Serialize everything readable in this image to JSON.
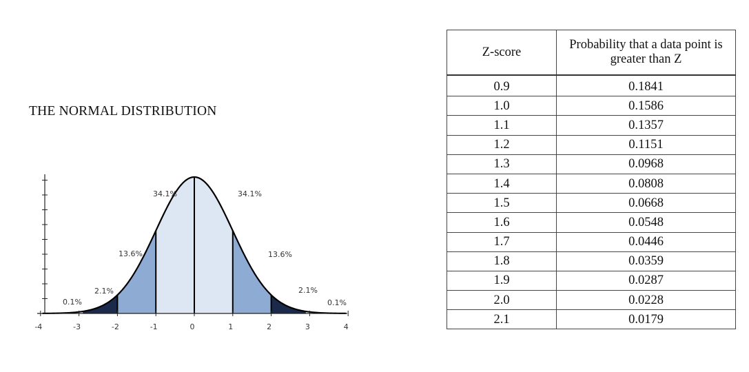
{
  "title": "THE NORMAL DISTRIBUTION",
  "table": {
    "headers": [
      "Z-score",
      "Probability that a data point is greater than Z"
    ],
    "rows": [
      [
        "0.9",
        "0.1841"
      ],
      [
        "1.0",
        "0.1586"
      ],
      [
        "1.1",
        "0.1357"
      ],
      [
        "1.2",
        "0.1151"
      ],
      [
        "1.3",
        "0.0968"
      ],
      [
        "1.4",
        "0.0808"
      ],
      [
        "1.5",
        "0.0668"
      ],
      [
        "1.6",
        "0.0548"
      ],
      [
        "1.7",
        "0.0446"
      ],
      [
        "1.8",
        "0.0359"
      ],
      [
        "1.9",
        "0.0287"
      ],
      [
        "2.0",
        "0.0228"
      ],
      [
        "2.1",
        "0.0179"
      ]
    ]
  },
  "chart_data": {
    "type": "area",
    "x_ticks": [
      "-4",
      "-3",
      "-2",
      "-1",
      "0",
      "1",
      "2",
      "3",
      "4"
    ],
    "xlim": [
      -4,
      4
    ],
    "region_labels": [
      "0.1%",
      "2.1%",
      "13.6%",
      "34.1%",
      "34.1%",
      "13.6%",
      "2.1%",
      "0.1%"
    ],
    "region_values": [
      0.1,
      2.1,
      13.6,
      34.1,
      34.1,
      13.6,
      2.1,
      0.1
    ],
    "colors": {
      "center": "#dde7f3",
      "middle": "#8eabd4",
      "tail": "#1b2a4a",
      "curve": "#000000"
    }
  }
}
